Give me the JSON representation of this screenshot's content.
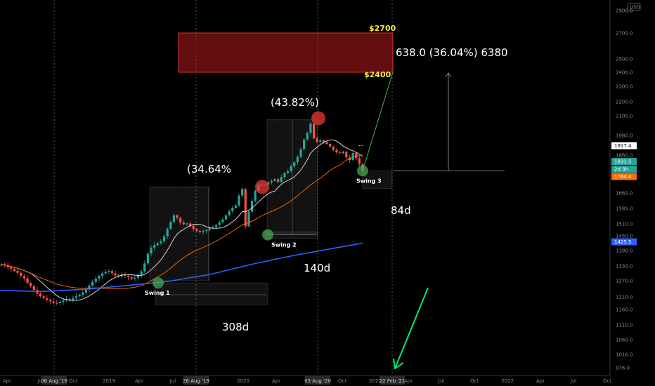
{
  "chart_data": {
    "type": "candlestick",
    "currency": "USD",
    "x_ticks": [
      "Apr",
      "Jul",
      "Oct",
      "2019",
      "Apr",
      "Jul",
      "Oct",
      "2020",
      "Apr",
      "Jul",
      "Oct",
      "2021",
      "Apr",
      "Jul",
      "Oct",
      "2022",
      "Apr",
      "Jul",
      "Oct"
    ],
    "y_ticks": [
      "2900.0",
      "2700.0",
      "2500.0",
      "2400.0",
      "2300.0",
      "2200.0",
      "2100.0",
      "1980.0",
      "1860.0",
      "1760.0",
      "1660.0",
      "1585.0",
      "1510.0",
      "1450.0",
      "1390.0",
      "1330.0",
      "1270.0",
      "1210.0",
      "1160.0",
      "1110.0",
      "1060.0",
      "1016.0",
      "976.0"
    ],
    "ylim": [
      960,
      2950
    ],
    "price_tags": [
      {
        "label": "1917.4",
        "value": 1917.4,
        "color": "#ffffff",
        "text_color": "#000000"
      },
      {
        "label": "1831.5",
        "value": 1831.5,
        "color": "#26a69a",
        "text_color": "#ffffff"
      },
      {
        "label": "2d 3h",
        "value": 1798,
        "color": "#26a69a",
        "text_color": "#ffffff"
      },
      {
        "label": "1764.4",
        "value": 1764.4,
        "color": "#ff6d00",
        "text_color": "#ffffff"
      },
      {
        "label": "1425.5",
        "value": 1425.5,
        "color": "#2962ff",
        "text_color": "#ffffff"
      }
    ],
    "date_labels": [
      "06 Aug '18",
      "26 Aug '19",
      "03 Aug '20",
      "22 Feb '21"
    ],
    "target_zone": {
      "low": 2400,
      "high": 2700,
      "low_label": "$2400",
      "high_label": "$2700",
      "measure_label": "638.0 (36.04%) 6380"
    },
    "annotations": [
      {
        "text": "(34.64%"
      },
      {
        "text": "(43.82%)"
      },
      {
        "text": "308d"
      },
      {
        "text": "140d"
      },
      {
        "text": "84d"
      }
    ],
    "swings": [
      {
        "label": "Swing 1",
        "price": 1262
      },
      {
        "label": "Swing 2",
        "price": 1455
      },
      {
        "label": "Swing 3",
        "price": 1790
      }
    ],
    "peaks": [
      {
        "price": 1700
      },
      {
        "price": 2085
      }
    ],
    "closes_weekly": [
      1336,
      1332,
      1325,
      1318,
      1310,
      1302,
      1290,
      1280,
      1262,
      1250,
      1236,
      1222,
      1212,
      1205,
      1198,
      1192,
      1186,
      1185,
      1190,
      1196,
      1202,
      1198,
      1205,
      1212,
      1218,
      1226,
      1238,
      1252,
      1266,
      1278,
      1290,
      1300,
      1306,
      1310,
      1300,
      1292,
      1288,
      1296,
      1290,
      1284,
      1278,
      1282,
      1294,
      1308,
      1340,
      1378,
      1402,
      1412,
      1420,
      1428,
      1448,
      1486,
      1520,
      1552,
      1538,
      1516,
      1508,
      1512,
      1500,
      1484,
      1474,
      1468,
      1474,
      1480,
      1488,
      1494,
      1504,
      1518,
      1532,
      1552,
      1572,
      1588,
      1600,
      1648,
      1686,
      1498,
      1570,
      1622,
      1676,
      1712,
      1714,
      1716,
      1728,
      1738,
      1750,
      1732,
      1762,
      1780,
      1788,
      1810,
      1828,
      1852,
      1896,
      1956,
      1996,
      2052,
      1962,
      1940,
      1950,
      1940,
      1928,
      1912,
      1892,
      1876,
      1872,
      1880,
      1850,
      1838,
      1872,
      1846,
      1820,
      1788
    ]
  }
}
